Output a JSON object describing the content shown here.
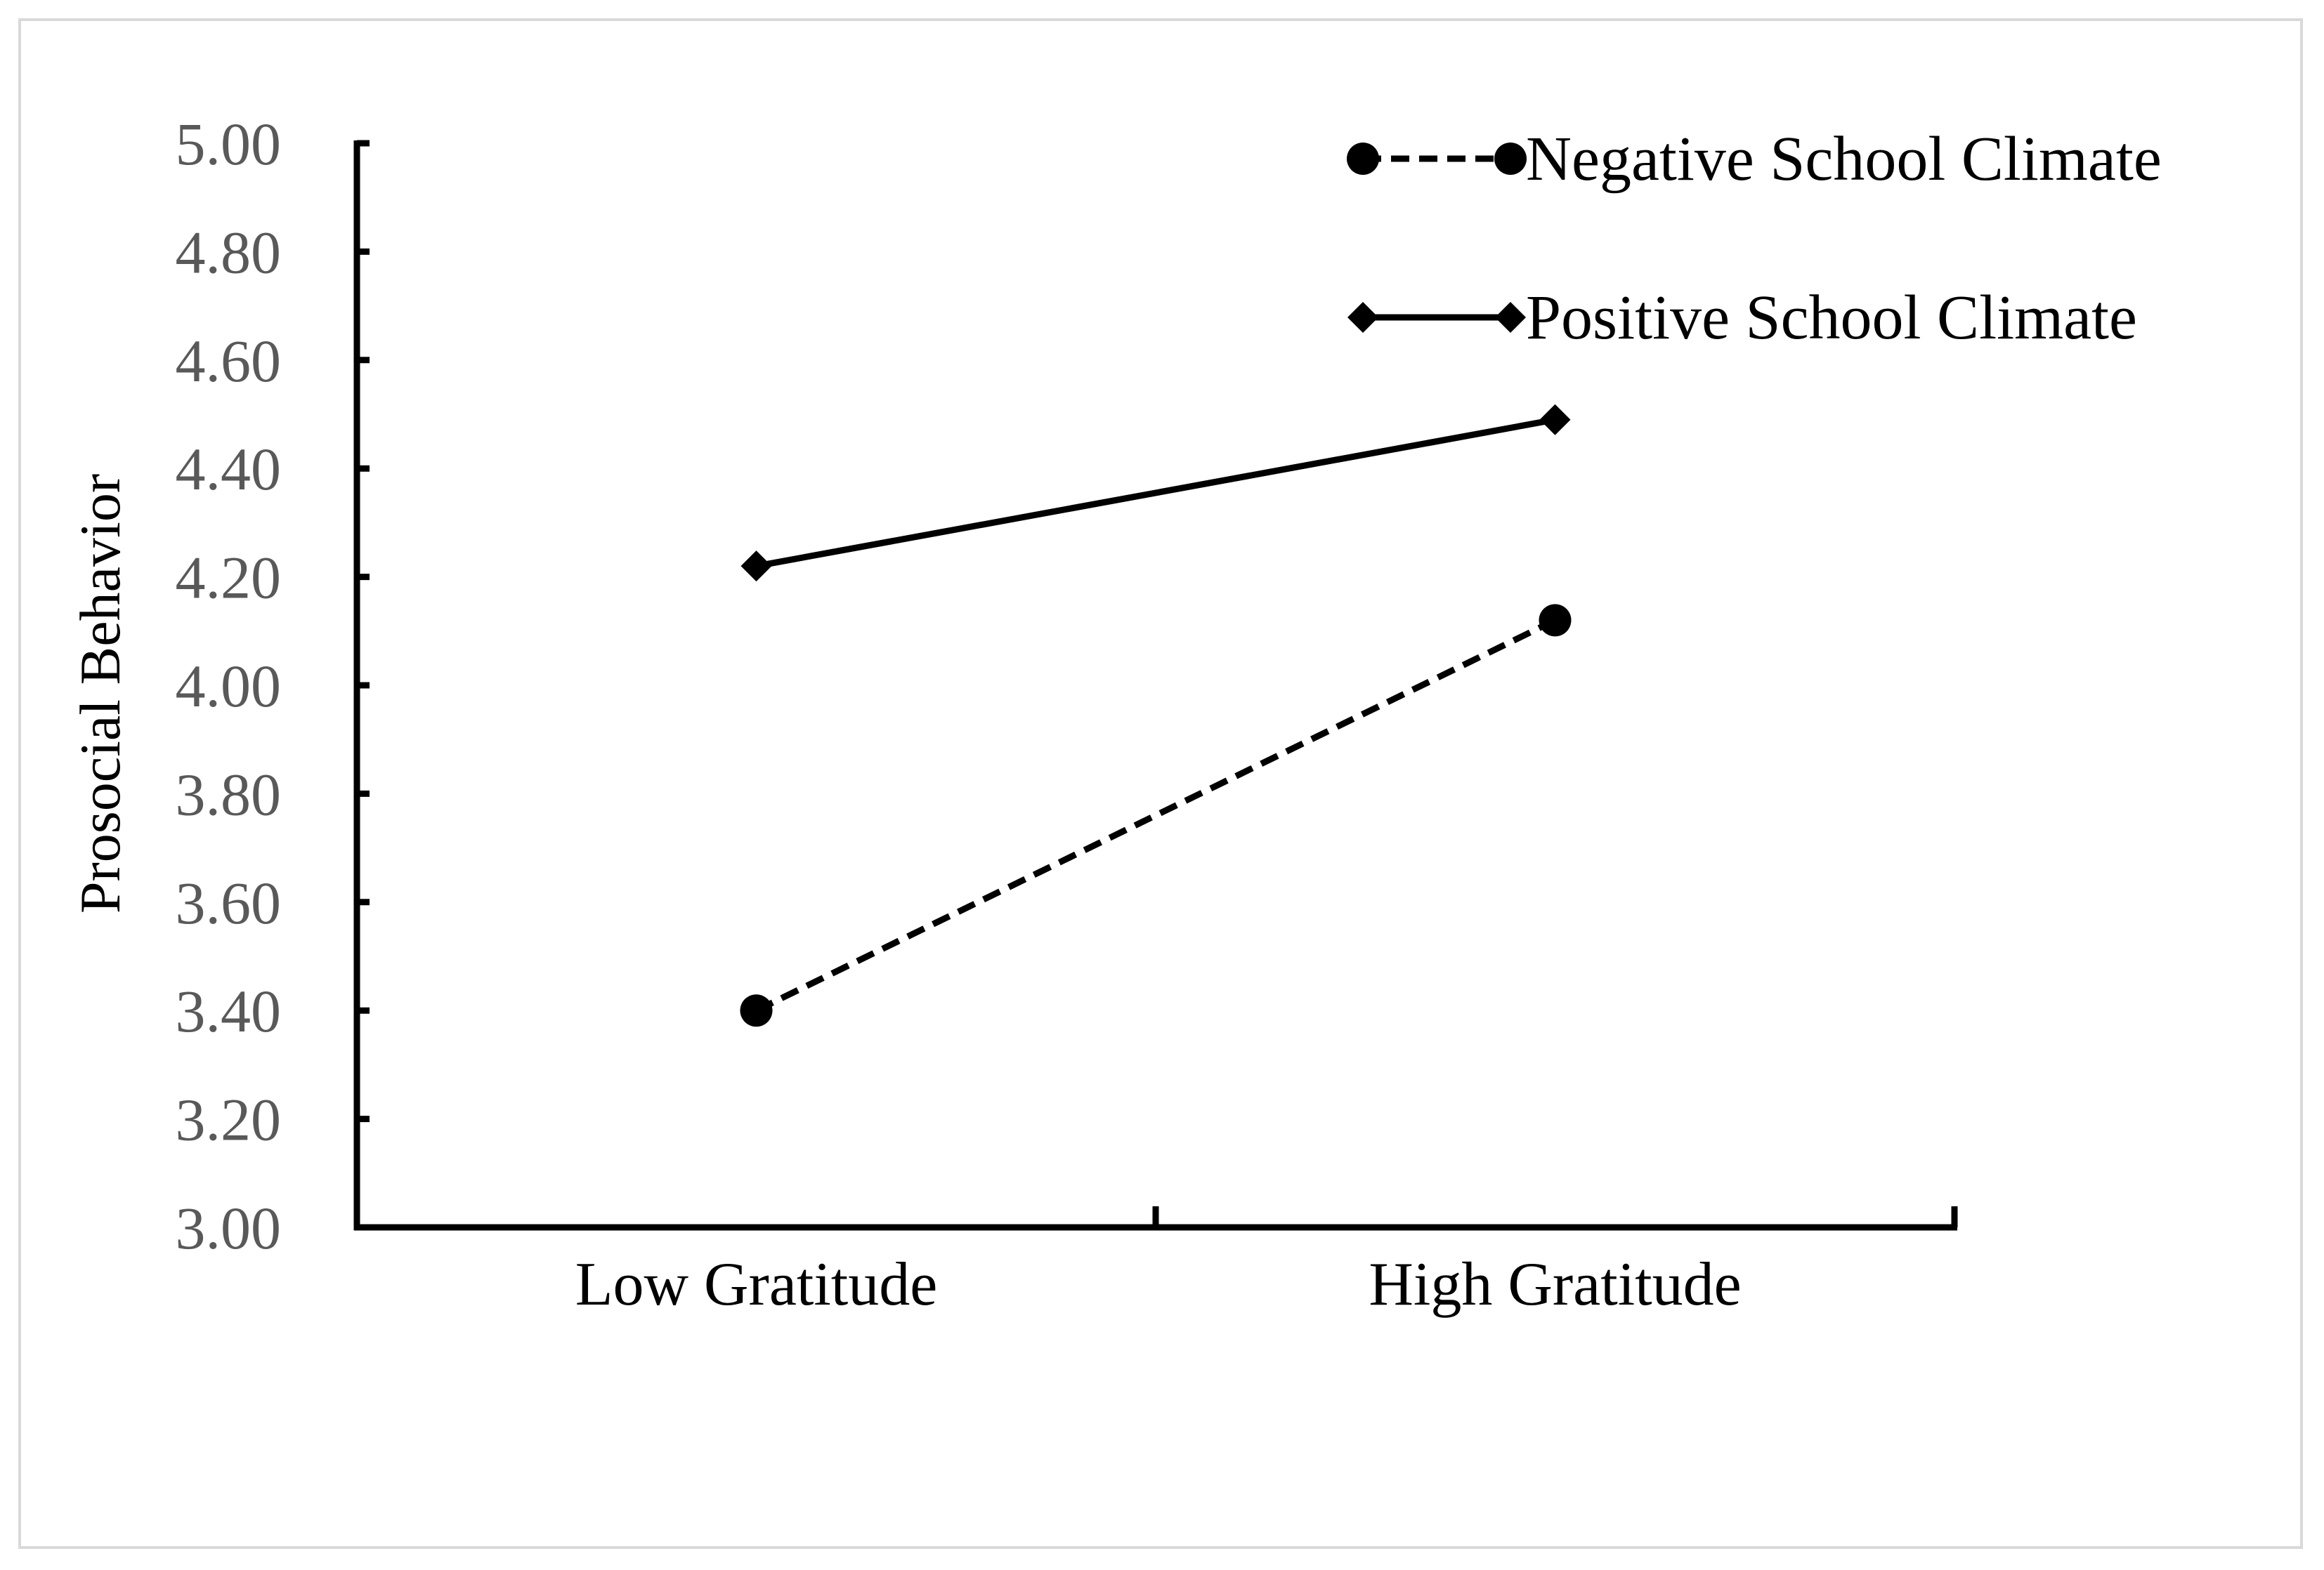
{
  "chart_data": {
    "type": "line",
    "title": "",
    "xlabel": "",
    "ylabel": "Prosocial Behavior",
    "categories": [
      "Low Gratitude",
      "High Gratitude"
    ],
    "ylim": [
      3.0,
      5.0
    ],
    "y_ticks": [
      "3.00",
      "3.20",
      "3.40",
      "3.60",
      "3.80",
      "4.00",
      "4.20",
      "4.40",
      "4.60",
      "4.80",
      "5.00"
    ],
    "grid": false,
    "legend_position": "top-right",
    "series": [
      {
        "name": "Negative School Climate",
        "values": [
          3.4,
          4.12
        ],
        "line_style": "dashed",
        "marker": "circle",
        "color": "#000000"
      },
      {
        "name": "Positive School Climate",
        "values": [
          4.22,
          4.49
        ],
        "line_style": "solid",
        "marker": "diamond",
        "color": "#000000"
      }
    ]
  }
}
